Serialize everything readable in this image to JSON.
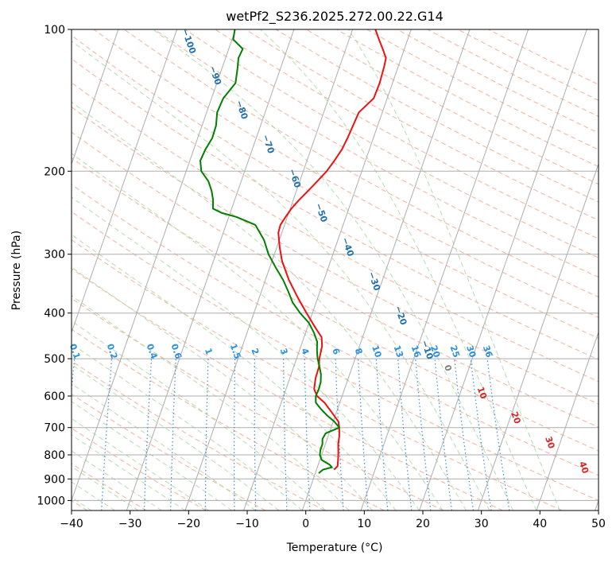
{
  "chart_data": {
    "type": "skew-t log-p",
    "title": "wetPf2_S236.2025.272.00.22.G14",
    "xlabel": "Temperature (°C)",
    "ylabel": "Pressure (hPa)",
    "xlim": [
      -40,
      50
    ],
    "ylim": [
      1050,
      100
    ],
    "x_ticks": [
      "−40",
      "−30",
      "−20",
      "−10",
      "0",
      "10",
      "20",
      "30",
      "40",
      "50"
    ],
    "x_tick_values": [
      -40,
      -30,
      -20,
      -10,
      0,
      10,
      20,
      30,
      40,
      50
    ],
    "y_ticks": [
      "100",
      "200",
      "300",
      "400",
      "500",
      "600",
      "700",
      "800",
      "900",
      "1000"
    ],
    "y_tick_values": [
      100,
      200,
      300,
      400,
      500,
      600,
      700,
      800,
      900,
      1000
    ],
    "series": [
      {
        "name": "temperature",
        "color": "#ee1111",
        "points": [
          [
            860,
            3.0
          ],
          [
            845,
            3.4
          ],
          [
            820,
            3.1
          ],
          [
            790,
            2.7
          ],
          [
            760,
            2.2
          ],
          [
            730,
            1.9
          ],
          [
            700,
            1.4
          ],
          [
            680,
            0.9
          ],
          [
            650,
            -0.8
          ],
          [
            620,
            -2.6
          ],
          [
            600,
            -4.3
          ],
          [
            580,
            -5.2
          ],
          [
            550,
            -5.6
          ],
          [
            520,
            -5.7
          ],
          [
            500,
            -6.1
          ],
          [
            470,
            -6.4
          ],
          [
            450,
            -7.0
          ],
          [
            430,
            -8.6
          ],
          [
            400,
            -11.0
          ],
          [
            370,
            -13.5
          ],
          [
            340,
            -16.0
          ],
          [
            310,
            -18.3
          ],
          [
            290,
            -19.5
          ],
          [
            270,
            -20.6
          ],
          [
            260,
            -20.7
          ],
          [
            250,
            -20.3
          ],
          [
            240,
            -19.8
          ],
          [
            230,
            -19.0
          ],
          [
            220,
            -18.0
          ],
          [
            210,
            -17.0
          ],
          [
            200,
            -16.0
          ],
          [
            190,
            -15.3
          ],
          [
            180,
            -14.7
          ],
          [
            170,
            -14.4
          ],
          [
            160,
            -14.2
          ],
          [
            150,
            -14.0
          ],
          [
            140,
            -12.3
          ],
          [
            130,
            -12.2
          ],
          [
            120,
            -12.4
          ],
          [
            115,
            -12.6
          ],
          [
            110,
            -13.7
          ],
          [
            105,
            -14.9
          ],
          [
            100,
            -16.1
          ]
        ]
      },
      {
        "name": "dewpoint",
        "color": "#008000",
        "points": [
          [
            875,
            0.6
          ],
          [
            860,
            1.1
          ],
          [
            850,
            2.5
          ],
          [
            840,
            2.0
          ],
          [
            820,
            0.3
          ],
          [
            800,
            -0.3
          ],
          [
            780,
            -0.5
          ],
          [
            760,
            -0.5
          ],
          [
            740,
            -0.8
          ],
          [
            720,
            -0.6
          ],
          [
            700,
            1.4
          ],
          [
            680,
            0.2
          ],
          [
            660,
            -1.4
          ],
          [
            640,
            -2.8
          ],
          [
            620,
            -4.1
          ],
          [
            600,
            -4.5
          ],
          [
            580,
            -4.4
          ],
          [
            560,
            -4.5
          ],
          [
            540,
            -4.9
          ],
          [
            520,
            -5.6
          ],
          [
            500,
            -6.4
          ],
          [
            480,
            -7.0
          ],
          [
            460,
            -7.5
          ],
          [
            440,
            -8.6
          ],
          [
            420,
            -10.0
          ],
          [
            400,
            -12.1
          ],
          [
            380,
            -14.0
          ],
          [
            360,
            -15.4
          ],
          [
            340,
            -17.0
          ],
          [
            320,
            -19.0
          ],
          [
            300,
            -21.0
          ],
          [
            280,
            -22.6
          ],
          [
            260,
            -25.0
          ],
          [
            250,
            -28.7
          ],
          [
            245,
            -31.5
          ],
          [
            240,
            -33.2
          ],
          [
            230,
            -33.7
          ],
          [
            220,
            -34.5
          ],
          [
            210,
            -35.6
          ],
          [
            200,
            -37.4
          ],
          [
            190,
            -38.2
          ],
          [
            180,
            -38.0
          ],
          [
            170,
            -37.5
          ],
          [
            160,
            -37.6
          ],
          [
            150,
            -38.2
          ],
          [
            140,
            -38.0
          ],
          [
            130,
            -36.8
          ],
          [
            120,
            -37.4
          ],
          [
            115,
            -37.8
          ],
          [
            110,
            -37.6
          ],
          [
            105,
            -39.8
          ],
          [
            100,
            -40.1
          ]
        ]
      }
    ],
    "dry_adiabat_labels": [
      "−100",
      "−90",
      "−80",
      "−70",
      "−60",
      "−50",
      "−40",
      "−30",
      "−20",
      "−10"
    ],
    "moist_adiabat_labels": [
      "0",
      "10",
      "20",
      "30",
      "40"
    ],
    "mixing_ratio_labels": [
      "0.1",
      "0.2",
      "0.4",
      "0.6",
      "1",
      "1.5",
      "2",
      "3",
      "4",
      "6",
      "8",
      "10",
      "13",
      "16",
      "20",
      "25",
      "30",
      "36"
    ],
    "colors": {
      "isotherm": "#adadad",
      "isobar": "#adadad",
      "dry_adiabat": "#f4b8a0",
      "moist_adiabat": "#b7dcb0",
      "mixing_ratio": "#3b8fdc",
      "dry_label": "#1f6fad",
      "moist_label": "#d62728",
      "moist_zero_label": "#7f7f7f",
      "mixing_label": "#2b90e0"
    }
  }
}
